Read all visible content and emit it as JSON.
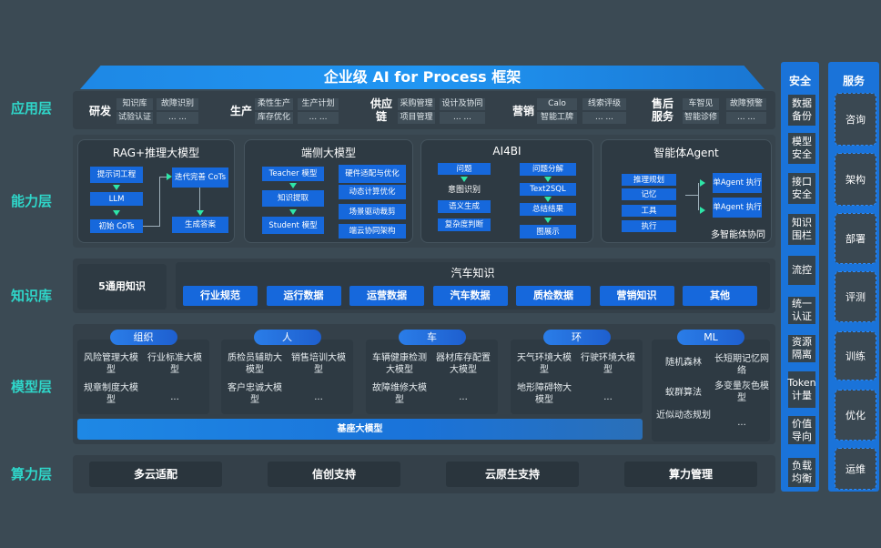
{
  "title": "企业级 AI for Process 框架",
  "layers": {
    "app": "应用层",
    "capability": "能力层",
    "knowledge": "知识库",
    "model": "模型层",
    "compute": "算力层"
  },
  "app_groups": [
    {
      "name": "研发",
      "items": [
        "知识库",
        "故障识别",
        "试验认证",
        "... ..."
      ]
    },
    {
      "name": "生产",
      "items": [
        "柔性生产",
        "生产计划",
        "库存优化",
        "... ..."
      ]
    },
    {
      "name": "供应链",
      "items": [
        "采购管理",
        "设计及协同",
        "项目管理",
        "... ..."
      ]
    },
    {
      "name": "营销",
      "items": [
        "Calo",
        "线索评级",
        "智能工牌",
        "... ..."
      ]
    },
    {
      "name": "售后服务",
      "items": [
        "车智见",
        "故障预警",
        "智能诊修",
        "... ..."
      ]
    }
  ],
  "capability": {
    "rag": {
      "title": "RAG+推理大模型",
      "items": [
        "提示词工程",
        "LLM",
        "初始 CoTs",
        "迭代完善 CoTs",
        "生成答案"
      ]
    },
    "edge": {
      "title": "端侧大模型",
      "items": [
        "Teacher 模型",
        "知识提取",
        "Student 模型",
        "硬件适配与优化",
        "动态计算优化",
        "场景驱动裁剪",
        "端云协同架构"
      ]
    },
    "ai4bi": {
      "title": "AI4BI",
      "items": [
        "问题",
        "意图识别",
        "语义生成",
        "复杂度判断",
        "问题分解",
        "Text2SQL",
        "总结结果",
        "图展示"
      ]
    },
    "agent": {
      "title": "智能体Agent",
      "items": [
        "推理规划",
        "记忆",
        "工具",
        "执行",
        "单Agent 执行",
        "单Agent 执行",
        "多智能体协同"
      ]
    }
  },
  "knowledge": {
    "general": "5通用知识",
    "auto_title": "汽车知识",
    "items": [
      "行业规范",
      "运行数据",
      "运营数据",
      "汽车数据",
      "质检数据",
      "营销知识",
      "其他"
    ]
  },
  "models": [
    {
      "tab": "组织",
      "items": [
        "风险管理大模型",
        "行业标准大模型",
        "规章制度大模型",
        "..."
      ]
    },
    {
      "tab": "人",
      "items": [
        "质检员辅助大模型",
        "销售培训大模型",
        "客户忠诚大模型",
        "..."
      ]
    },
    {
      "tab": "车",
      "items": [
        "车辆健康检测大模型",
        "器材库存配置大模型",
        "故障维修大模型",
        "..."
      ]
    },
    {
      "tab": "环",
      "items": [
        "天气环境大模型",
        "行驶环境大模型",
        "地形障碍物大模型",
        "..."
      ]
    },
    {
      "tab": "ML",
      "items": [
        "随机森林",
        "长短期记忆网络",
        "蚁群算法",
        "多变量灰色模型",
        "近似动态规划",
        "..."
      ]
    }
  ],
  "base_model": "基座大模型",
  "compute": [
    "多云适配",
    "信创支持",
    "云原生支持",
    "算力管理"
  ],
  "security": {
    "title": "安全",
    "items": [
      "数据备份",
      "模型安全",
      "接口安全",
      "知识围栏",
      "流控",
      "统一认证",
      "资源隔离",
      "Token计量",
      "价值导向",
      "负载均衡"
    ]
  },
  "service": {
    "title": "服务",
    "items": [
      "咨询",
      "架构",
      "部署",
      "评测",
      "训练",
      "优化",
      "运维"
    ]
  },
  "colors": {
    "accent": "#1668dc",
    "label": "#2fd6c9",
    "background": "#3b4a54",
    "arrow": "#2ee6a8"
  }
}
